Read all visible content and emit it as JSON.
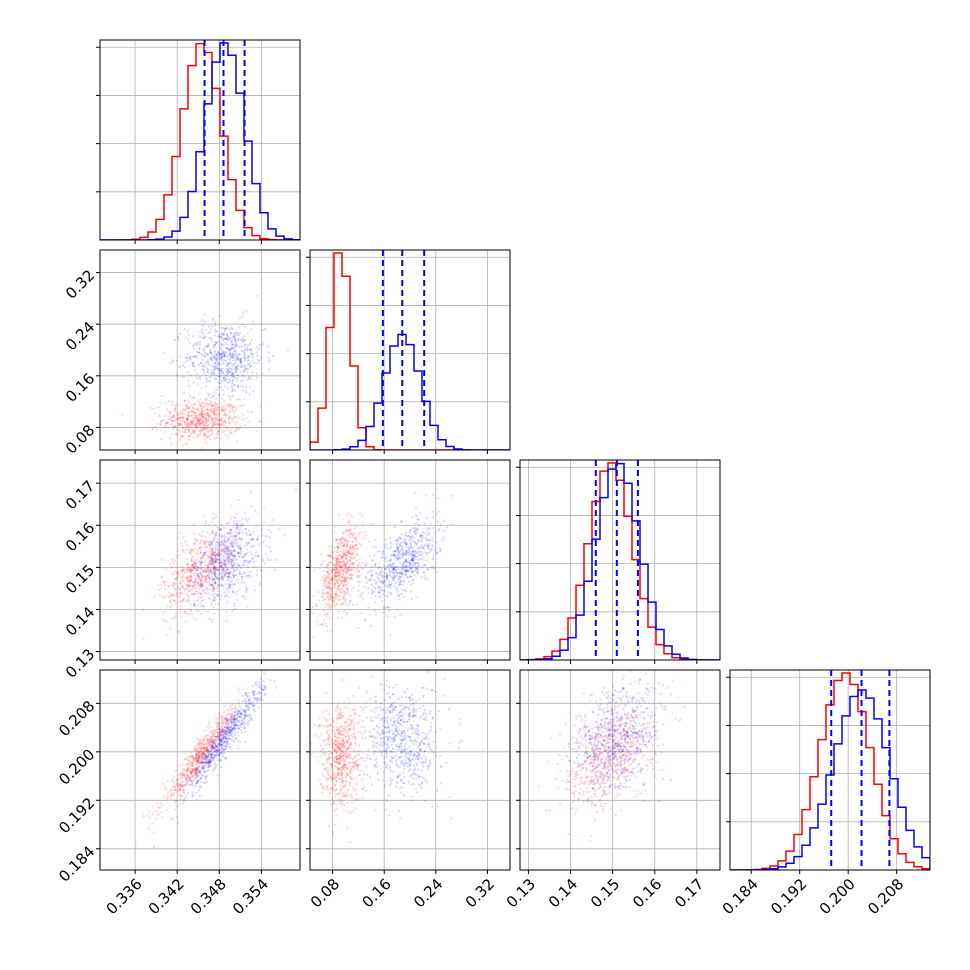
{
  "chart_data": {
    "type": "corner",
    "title": "",
    "parameters": [
      {
        "range": [
          0.331,
          0.3595
        ],
        "ticks": [
          "0.336",
          "0.342",
          "0.348",
          "0.354"
        ]
      },
      {
        "range": [
          0.045,
          0.355
        ],
        "ticks": [
          "0.08",
          "0.16",
          "0.24",
          "0.32"
        ]
      },
      {
        "range": [
          0.128,
          0.1755
        ],
        "ticks": [
          "0.13",
          "0.14",
          "0.15",
          "0.16",
          "0.17"
        ]
      },
      {
        "range": [
          0.1805,
          0.2135
        ],
        "ticks": [
          "0.184",
          "0.192",
          "0.200",
          "0.208"
        ]
      }
    ],
    "series": [
      {
        "color": "#ff0000",
        "mean": [
          0.3455,
          0.092,
          0.1495,
          0.1995
        ],
        "sigma": [
          0.0028,
          0.016,
          0.0052,
          0.0042
        ],
        "correlations": {
          "0-1": 0.0,
          "0-2": 0.55,
          "0-3": 0.95,
          "1-2": 0.55,
          "1-3": 0.0,
          "2-3": 0.4
        }
      },
      {
        "color": "#0000ff",
        "mean": [
          0.3488,
          0.188,
          0.1512,
          0.2022
        ],
        "sigma": [
          0.0028,
          0.028,
          0.0052,
          0.0046
        ],
        "correlations": {
          "0-1": 0.0,
          "0-2": 0.35,
          "0-3": 0.95,
          "1-2": 0.55,
          "1-3": 0.0,
          "2-3": 0.35
        }
      }
    ],
    "quantile_lines": {
      "color": "#0000ff",
      "style": "dashed",
      "values": [
        [
          0.3459,
          0.3486,
          0.3516
        ],
        [
          0.158,
          0.188,
          0.222
        ],
        [
          0.146,
          0.151,
          0.156
        ],
        [
          0.1972,
          0.2022,
          0.2068
        ]
      ]
    },
    "grid": true,
    "legend": "none"
  }
}
